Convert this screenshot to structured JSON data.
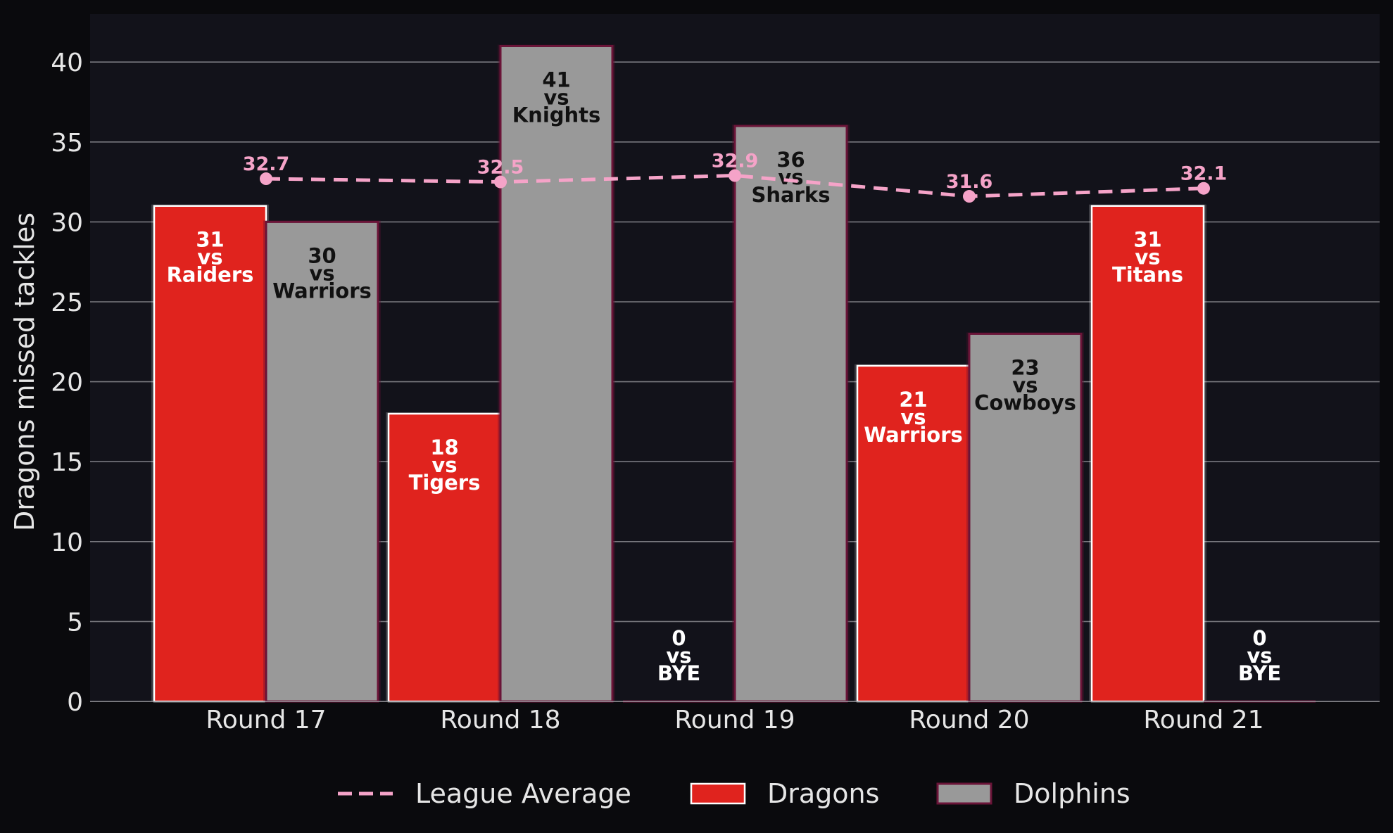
{
  "chart_data": {
    "type": "bar",
    "title": "",
    "xlabel": "",
    "ylabel": "Dragons missed tackles",
    "ylim": [
      0,
      43
    ],
    "yticks": [
      0,
      5,
      10,
      15,
      20,
      25,
      30,
      35,
      40
    ],
    "grid": "horizontal",
    "legend_position": "bottom",
    "categories": [
      "Round 17",
      "Round 18",
      "Round 19",
      "Round 20",
      "Round 21"
    ],
    "series": [
      {
        "name": "Dragons",
        "kind": "bar",
        "color": "#e0231e",
        "values": [
          31,
          18,
          0,
          21,
          31
        ],
        "opponents": [
          "Raiders",
          "Tigers",
          "BYE",
          "Warriors",
          "Titans"
        ]
      },
      {
        "name": "Dolphins",
        "kind": "bar",
        "color": "#999999",
        "values": [
          30,
          41,
          36,
          23,
          0
        ],
        "opponents": [
          "Warriors",
          "Knights",
          "Sharks",
          "Cowboys",
          "BYE"
        ]
      },
      {
        "name": "League Average",
        "kind": "line",
        "style": "dashed",
        "color": "#f5a3c8",
        "values": [
          32.7,
          32.5,
          32.9,
          31.6,
          32.1
        ],
        "labels": [
          "32.7",
          "32.5",
          "32.9",
          "31.6",
          "32.1"
        ]
      }
    ],
    "vs_word": "vs"
  }
}
